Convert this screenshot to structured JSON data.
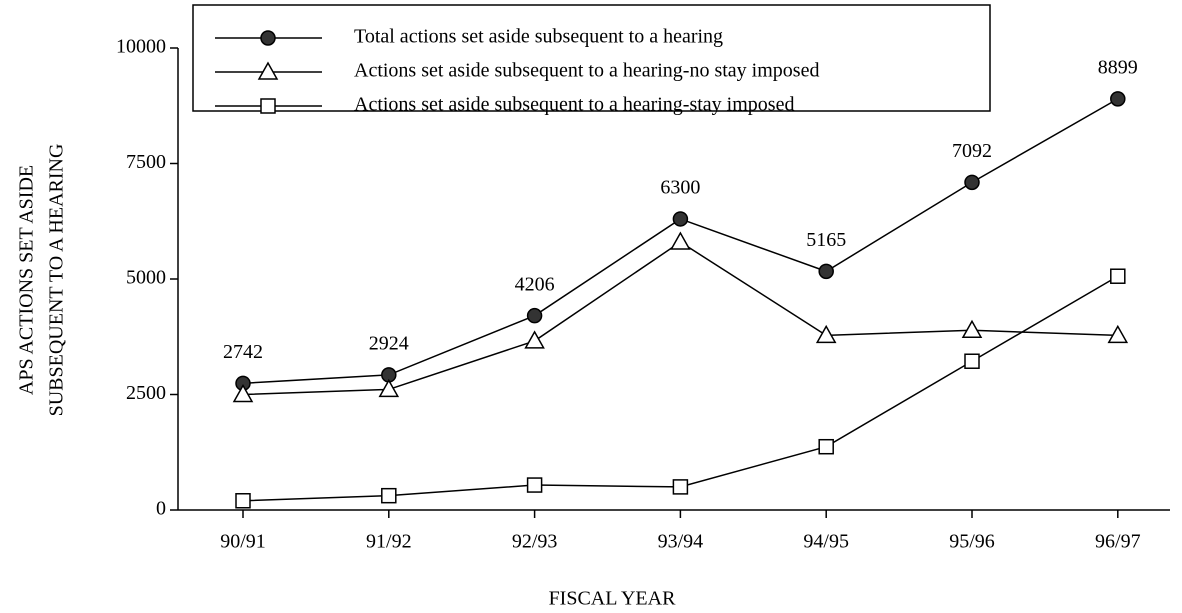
{
  "chart_data": {
    "type": "line",
    "categories": [
      "90/91",
      "91/92",
      "92/93",
      "93/94",
      "94/95",
      "95/96",
      "96/97"
    ],
    "series": [
      {
        "name": "Total actions set aside subsequent to a hearing",
        "color": "#000000",
        "marker": "circle",
        "values": [
          2742,
          2924,
          4206,
          6300,
          5165,
          7092,
          8899
        ],
        "data_labels": true
      },
      {
        "name": "Actions set aside subsequent to a  hearing-no stay imposed",
        "color": "#000000",
        "marker": "triangle",
        "values": [
          2500,
          2610,
          3660,
          5800,
          3780,
          3890,
          3780
        ]
      },
      {
        "name": "Actions set aside subsequent to a hearing-stay imposed",
        "color": "#000000",
        "marker": "square",
        "values": [
          200,
          310,
          540,
          500,
          1370,
          3220,
          5060
        ]
      }
    ],
    "ylim": [
      0,
      10000
    ],
    "yticks": [
      0,
      2500,
      5000,
      7500,
      10000
    ],
    "ylabel": [
      "APS  ACTIONS SET ASIDE",
      "SUBSEQUENT TO A HEARING"
    ],
    "xlabel": "FISCAL YEAR",
    "legend": "top",
    "grid": false
  }
}
